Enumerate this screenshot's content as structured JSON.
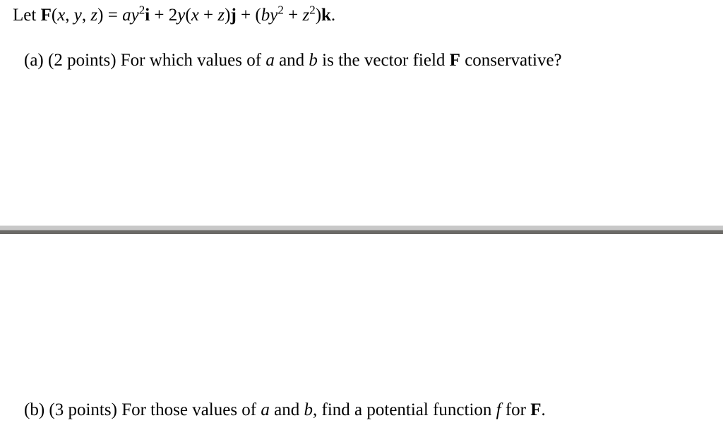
{
  "intro": {
    "prefix": "Let ",
    "F": "F",
    "args_open": "(",
    "x": "x",
    "c1": ", ",
    "y": "y",
    "c2": ", ",
    "z": "z",
    "args_close": ") = ",
    "a1": "a",
    "y1": "y",
    "exp2a": "2",
    "i": "i",
    "plus1": " + 2",
    "y2": "y",
    "paren_open": "(",
    "x2": "x",
    "plus_in": " + ",
    "z2": "z",
    "paren_close": ")",
    "j": "j",
    "plus2": " + (",
    "b1": "b",
    "y3": "y",
    "exp2b": "2",
    "plus3": " + ",
    "z3": "z",
    "exp2c": "2",
    "close2": ")",
    "k": "k",
    "period": "."
  },
  "partA": {
    "label": "(a)",
    "points": "  (2 points)  ",
    "text1": "For which values of ",
    "a": "a",
    "text2": " and ",
    "b": "b",
    "text3": " is the vector field ",
    "F": "F",
    "text4": " conservative?"
  },
  "partB": {
    "label": "(b)",
    "points": "  (3 points)  ",
    "text1": "For those values of ",
    "a": "a",
    "text2": " and ",
    "b": "b",
    "text3": ", find a potential function ",
    "f": "f",
    "text4": " for ",
    "F": "F",
    "period": "."
  },
  "style": {
    "background": "#ffffff",
    "text_color": "#000000",
    "fontsize": 25,
    "divider_top_color": "#c8c8c8",
    "divider_bottom_color": "#6b6a67",
    "divider_height": 12
  }
}
